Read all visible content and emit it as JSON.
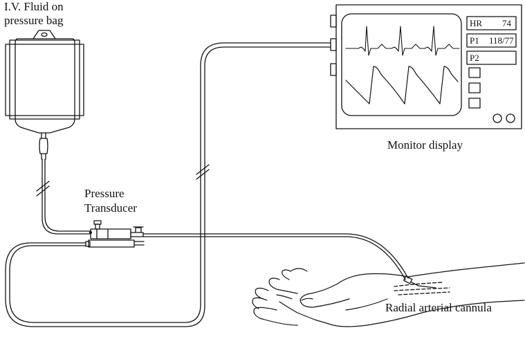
{
  "labels": {
    "iv_line1": "I.V. Fluid on",
    "iv_line2": "pressure bag",
    "transducer_line1": "Pressure",
    "transducer_line2": "Transducer",
    "monitor": "Monitor display",
    "cannula": "Radial arterial cannula"
  },
  "monitor": {
    "hr_label": "HR",
    "hr_value": "74",
    "p1_label": "P1",
    "p1_value": "118/77",
    "p2_label": "P2"
  },
  "colors": {
    "stroke": "#111111",
    "background": "#ffffff"
  }
}
